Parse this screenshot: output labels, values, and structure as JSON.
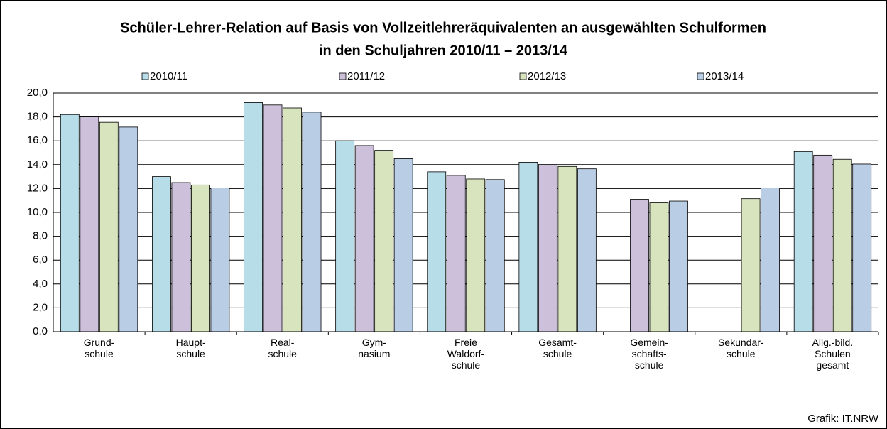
{
  "chart_data": {
    "type": "bar",
    "title": [
      "Schüler-Lehrer-Relation auf Basis von Vollzeitlehreräquivalenten an ausgewählten Schulformen",
      "in den Schuljahren 2010/11 – 2013/14"
    ],
    "source": "Grafik: IT.NRW",
    "categories": [
      "Grund-\nschule",
      "Haupt-\nschule",
      "Real-\nschule",
      "Gym-\nnasium",
      "Freie\nWaldorf-\nschule",
      "Gesamt-\nschule",
      "Gemein-\nschafts-\nschule",
      "Sekundar-\nschule",
      "Allg.-bild.\nSchulen\ngesamt"
    ],
    "series": [
      {
        "name": "2010/11",
        "color": "#b7dde8",
        "values": [
          18.2,
          13.0,
          19.2,
          16.0,
          13.4,
          14.2,
          null,
          null,
          15.1
        ]
      },
      {
        "name": "2011/12",
        "color": "#ccc0da",
        "values": [
          18.0,
          12.5,
          19.0,
          15.6,
          13.1,
          14.0,
          11.1,
          null,
          14.8
        ]
      },
      {
        "name": "2012/13",
        "color": "#d7e4bd",
        "values": [
          17.55,
          12.3,
          18.75,
          15.2,
          12.8,
          13.85,
          10.8,
          11.15,
          14.45
        ]
      },
      {
        "name": "2013/14",
        "color": "#b9cde5",
        "values": [
          17.15,
          12.05,
          18.4,
          14.5,
          12.75,
          13.65,
          10.95,
          12.05,
          14.05
        ]
      }
    ],
    "ylim": [
      0,
      20
    ],
    "yticks": [
      {
        "value": 0,
        "label": "0,0"
      },
      {
        "value": 2,
        "label": "2,0"
      },
      {
        "value": 4,
        "label": "4,0"
      },
      {
        "value": 6,
        "label": "6,0"
      },
      {
        "value": 8,
        "label": "8,0"
      },
      {
        "value": 10,
        "label": "10,0"
      },
      {
        "value": 12,
        "label": "12,0"
      },
      {
        "value": 14,
        "label": "14,0"
      },
      {
        "value": 16,
        "label": "16,0"
      },
      {
        "value": 18,
        "label": "18,0"
      },
      {
        "value": 20,
        "label": "20,0"
      }
    ],
    "grid": true,
    "legend": "top"
  }
}
